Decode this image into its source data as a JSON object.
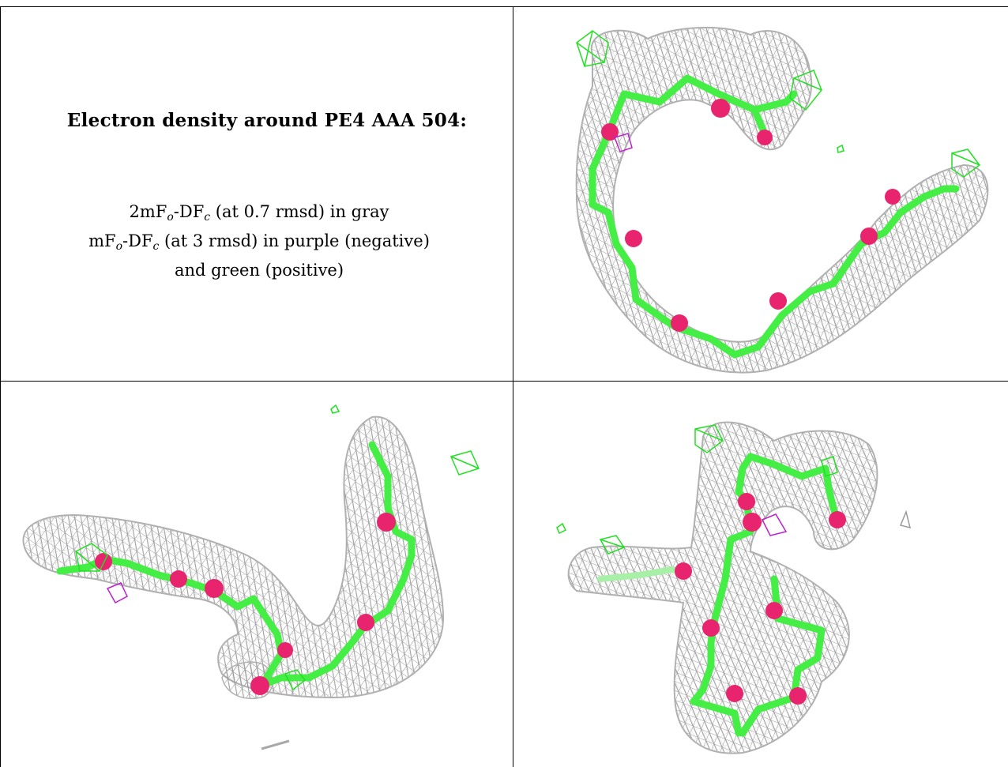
{
  "caption": {
    "title": "Electron density around PE4 AAA 504:",
    "line1_prefix": "2mF",
    "line1_sub1": "o",
    "line1_mid": "-DF",
    "line1_sub2": "c",
    "line1_suffix": " (at 0.7 rmsd) in gray",
    "line2_prefix": "mF",
    "line2_sub1": "o",
    "line2_mid": "-DF",
    "line2_sub2": "c",
    "line2_suffix": " (at 3 rmsd) in purple (negative)",
    "line3": "and green (positive)"
  },
  "colors": {
    "mesh_2fofc": "#a9a9a9",
    "positive_density": "#22e022",
    "negative_density": "#bb22cc",
    "carbon": "#44ee44",
    "oxygen": "#e8246e"
  },
  "views": [
    {
      "id": "view-top-right",
      "molecule": "PE4"
    },
    {
      "id": "view-bottom-left",
      "molecule": "PE4"
    },
    {
      "id": "view-bottom-right",
      "molecule": "PE4"
    }
  ]
}
